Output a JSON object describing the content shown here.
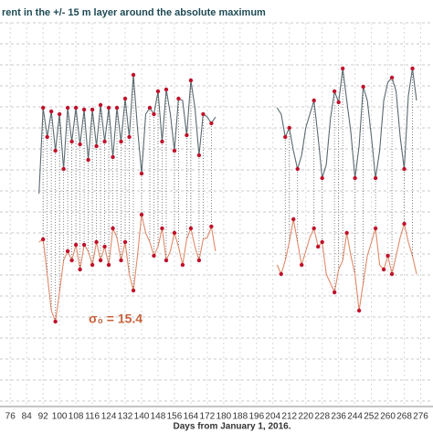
{
  "chart_data": {
    "type": "line",
    "title": "rent in the +/- 15 m layer around the absolute maximum",
    "x_label": "Days from January 1, 2016.",
    "annotation": "σ₀ = 15.4",
    "annotation_color": "#c8643c",
    "marker_color": "#c0102a",
    "grid": true,
    "xlim": [
      71,
      282
    ],
    "ylim": [
      0,
      420
    ],
    "xticks": [
      76,
      84,
      92,
      100,
      108,
      116,
      124,
      132,
      140,
      148,
      156,
      164,
      172,
      180,
      188,
      196,
      204,
      212,
      220,
      228,
      236,
      244,
      252,
      260,
      268,
      276
    ],
    "x": [
      90,
      92,
      94,
      96,
      98,
      100,
      102,
      104,
      106,
      108,
      110,
      112,
      114,
      116,
      118,
      120,
      122,
      124,
      126,
      128,
      130,
      132,
      134,
      136,
      138,
      140,
      142,
      144,
      146,
      148,
      150,
      152,
      154,
      156,
      158,
      160,
      162,
      164,
      166,
      168,
      170,
      172,
      174,
      176,
      190,
      206,
      208,
      210,
      212,
      214,
      216,
      218,
      220,
      222,
      224,
      226,
      228,
      230,
      232,
      234,
      236,
      238,
      240,
      242,
      244,
      246,
      248,
      250,
      252,
      254,
      256,
      258,
      260,
      262,
      264,
      266,
      268,
      270,
      272,
      274
    ],
    "series": [
      {
        "color": "#5a6a70",
        "values": [
          233,
          327,
          295,
          323,
          280,
          320,
          260,
          327,
          290,
          327,
          287,
          325,
          270,
          325,
          285,
          330,
          290,
          327,
          273,
          327,
          290,
          337,
          295,
          363,
          305,
          255,
          320,
          327,
          320,
          345,
          290,
          347,
          320,
          280,
          337,
          335,
          297,
          357,
          327,
          275,
          320,
          317,
          310,
          317,
          null,
          327,
          320,
          295,
          305,
          280,
          260,
          275,
          305,
          320,
          335,
          295,
          250,
          265,
          315,
          345,
          333,
          370,
          335,
          300,
          250,
          285,
          350,
          335,
          295,
          250,
          280,
          335,
          355,
          360,
          345,
          295,
          260,
          340,
          370,
          335
        ]
      },
      {
        "color": "#e08a6a",
        "values": [
          180,
          183,
          145,
          105,
          93,
          125,
          160,
          170,
          160,
          177,
          150,
          177,
          170,
          155,
          180,
          160,
          175,
          155,
          195,
          185,
          160,
          180,
          145,
          127,
          165,
          210,
          190,
          180,
          165,
          175,
          195,
          160,
          170,
          190,
          175,
          155,
          183,
          195,
          175,
          160,
          183,
          185,
          197,
          170,
          null,
          155,
          145,
          160,
          180,
          205,
          180,
          155,
          170,
          185,
          195,
          175,
          180,
          145,
          135,
          125,
          150,
          160,
          190,
          165,
          145,
          105,
          135,
          165,
          180,
          195,
          155,
          150,
          165,
          145,
          165,
          185,
          200,
          180,
          165,
          145
        ]
      }
    ]
  }
}
